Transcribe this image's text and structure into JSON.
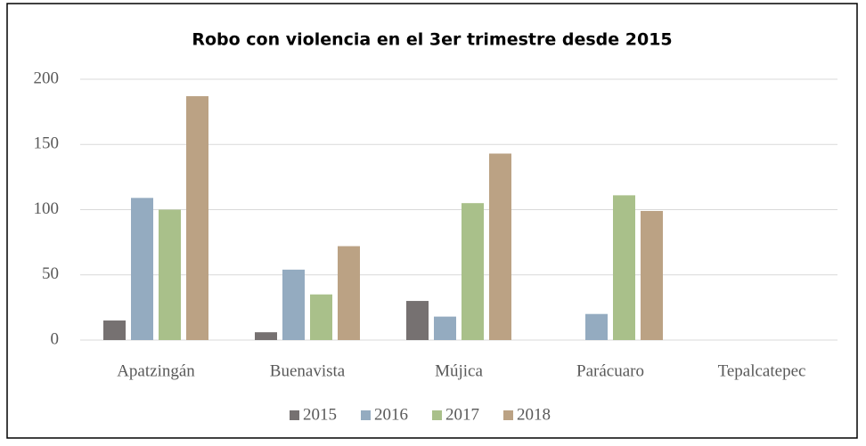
{
  "chart_data": {
    "type": "bar",
    "title": "Robo con violencia en el 3er trimestre desde 2015",
    "categories": [
      "Apatzingán",
      "Buenavista",
      "Mújica",
      "Parácuaro",
      "Tepalcatepec"
    ],
    "series": [
      {
        "name": "2015",
        "color": "#767171",
        "values": [
          15,
          6,
          30,
          0,
          0
        ]
      },
      {
        "name": "2016",
        "color": "#94abc0",
        "values": [
          109,
          54,
          18,
          20,
          0
        ]
      },
      {
        "name": "2017",
        "color": "#a9c08a",
        "values": [
          100,
          35,
          105,
          111,
          0
        ]
      },
      {
        "name": "2018",
        "color": "#bba284",
        "values": [
          187,
          72,
          143,
          99,
          0
        ]
      }
    ],
    "ylim": [
      0,
      200
    ],
    "yticks": [
      0,
      50,
      100,
      150,
      200
    ],
    "grid": true,
    "legend": "bottom"
  }
}
